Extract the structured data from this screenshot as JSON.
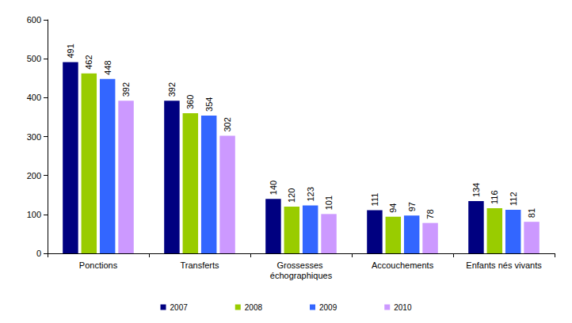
{
  "chart_data": {
    "type": "bar",
    "categories": [
      "Ponctions",
      "Transferts",
      "Grossesses échographiques",
      "Accouchements",
      "Enfants nés vivants"
    ],
    "series": [
      {
        "name": "2007",
        "color": "#000080",
        "values": [
          491,
          392,
          140,
          111,
          134
        ]
      },
      {
        "name": "2008",
        "color": "#99cc00",
        "values": [
          462,
          360,
          120,
          94,
          116
        ]
      },
      {
        "name": "2009",
        "color": "#3366ff",
        "values": [
          448,
          354,
          123,
          97,
          112
        ]
      },
      {
        "name": "2010",
        "color": "#cc99ff",
        "values": [
          392,
          302,
          101,
          78,
          81
        ]
      }
    ],
    "ylim": [
      0,
      600
    ],
    "yticks": [
      0,
      100,
      200,
      300,
      400,
      500,
      600
    ],
    "grid": false,
    "legend": "bottom",
    "data_labels": true
  }
}
